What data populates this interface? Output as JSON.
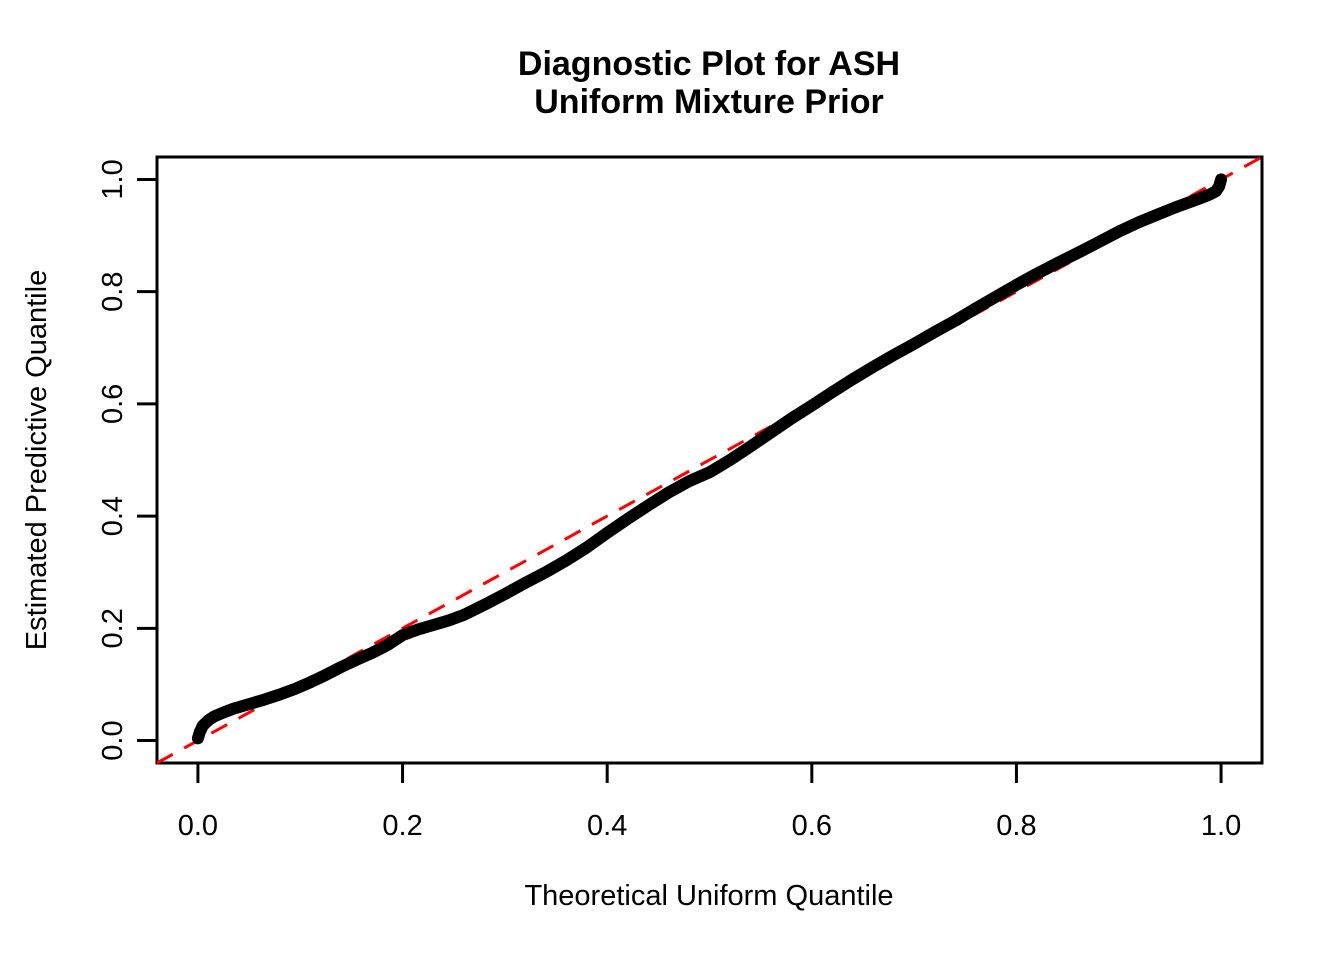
{
  "figure": {
    "background": "#ffffff"
  },
  "chart_data": {
    "type": "line",
    "title_lines": [
      "Diagnostic Plot for ASH",
      "Uniform Mixture Prior"
    ],
    "xlabel": "Theoretical Uniform Quantile",
    "ylabel": "Estimated Predictive Quantile",
    "xlim": [
      -0.04,
      1.04
    ],
    "ylim": [
      -0.04,
      1.04
    ],
    "x_tick_values": [
      0.0,
      0.2,
      0.4,
      0.6,
      0.8,
      1.0
    ],
    "x_tick_labels": [
      "0.0",
      "0.2",
      "0.4",
      "0.6",
      "0.8",
      "1.0"
    ],
    "y_tick_values": [
      0.0,
      0.2,
      0.4,
      0.6,
      0.8,
      1.0
    ],
    "y_tick_labels": [
      "0.0",
      "0.2",
      "0.4",
      "0.6",
      "0.8",
      "1.0"
    ],
    "grid": false,
    "legend": null,
    "series": [
      {
        "name": "empirical-predictive-quantiles",
        "style": "thick-solid",
        "color": "#000000",
        "points": [
          [
            0.0,
            0.004
          ],
          [
            0.002,
            0.016
          ],
          [
            0.005,
            0.027
          ],
          [
            0.01,
            0.036
          ],
          [
            0.016,
            0.043
          ],
          [
            0.025,
            0.05
          ],
          [
            0.035,
            0.057
          ],
          [
            0.05,
            0.065
          ],
          [
            0.065,
            0.073
          ],
          [
            0.08,
            0.082
          ],
          [
            0.095,
            0.092
          ],
          [
            0.11,
            0.104
          ],
          [
            0.125,
            0.117
          ],
          [
            0.14,
            0.131
          ],
          [
            0.155,
            0.144
          ],
          [
            0.17,
            0.156
          ],
          [
            0.185,
            0.17
          ],
          [
            0.2,
            0.188
          ],
          [
            0.215,
            0.198
          ],
          [
            0.23,
            0.206
          ],
          [
            0.245,
            0.214
          ],
          [
            0.26,
            0.224
          ],
          [
            0.28,
            0.242
          ],
          [
            0.3,
            0.261
          ],
          [
            0.32,
            0.281
          ],
          [
            0.34,
            0.3
          ],
          [
            0.36,
            0.321
          ],
          [
            0.38,
            0.344
          ],
          [
            0.4,
            0.37
          ],
          [
            0.42,
            0.395
          ],
          [
            0.44,
            0.419
          ],
          [
            0.46,
            0.442
          ],
          [
            0.48,
            0.462
          ],
          [
            0.5,
            0.478
          ],
          [
            0.52,
            0.5
          ],
          [
            0.54,
            0.524
          ],
          [
            0.56,
            0.549
          ],
          [
            0.58,
            0.574
          ],
          [
            0.6,
            0.597
          ],
          [
            0.62,
            0.621
          ],
          [
            0.64,
            0.644
          ],
          [
            0.66,
            0.666
          ],
          [
            0.68,
            0.687
          ],
          [
            0.7,
            0.707
          ],
          [
            0.72,
            0.728
          ],
          [
            0.74,
            0.748
          ],
          [
            0.76,
            0.77
          ],
          [
            0.78,
            0.791
          ],
          [
            0.8,
            0.812
          ],
          [
            0.82,
            0.832
          ],
          [
            0.84,
            0.851
          ],
          [
            0.86,
            0.869
          ],
          [
            0.88,
            0.888
          ],
          [
            0.9,
            0.907
          ],
          [
            0.92,
            0.924
          ],
          [
            0.94,
            0.939
          ],
          [
            0.955,
            0.95
          ],
          [
            0.97,
            0.96
          ],
          [
            0.982,
            0.968
          ],
          [
            0.99,
            0.974
          ],
          [
            0.995,
            0.979
          ],
          [
            0.998,
            0.987
          ],
          [
            1.0,
            1.0
          ]
        ]
      },
      {
        "name": "reference-diagonal",
        "style": "dashed",
        "color": "#FF0000",
        "points": [
          [
            -0.04,
            -0.04
          ],
          [
            1.04,
            1.04
          ]
        ]
      }
    ]
  }
}
